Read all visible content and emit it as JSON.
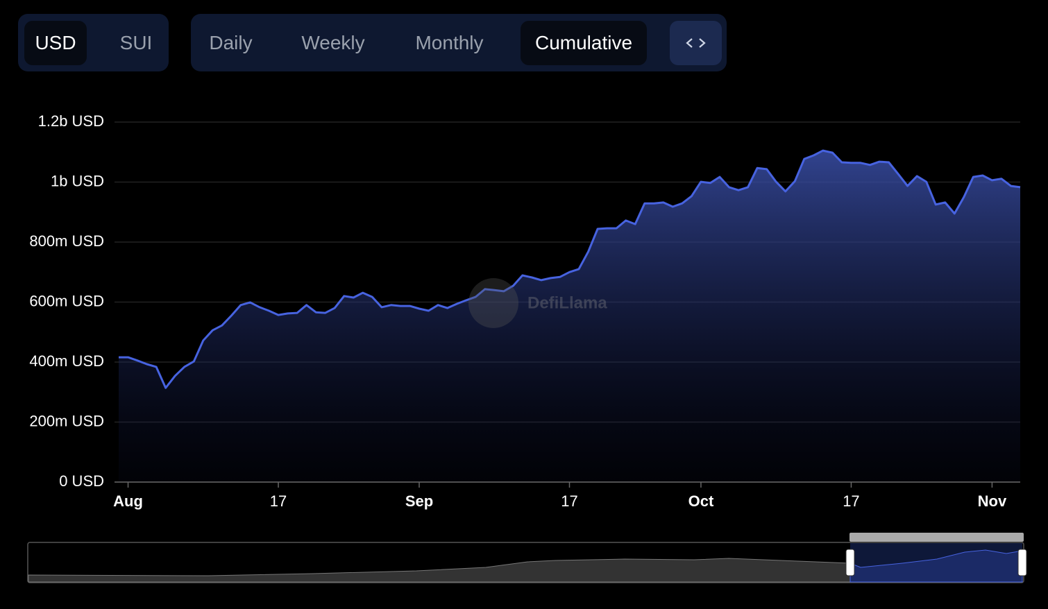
{
  "ui": {
    "currency_tabs": [
      "USD",
      "SUI"
    ],
    "period_tabs": [
      "Daily",
      "Weekly",
      "Monthly",
      "Cumulative"
    ],
    "watermark": "DefiLlama"
  },
  "chart_data": {
    "type": "area",
    "color": "#4763e0",
    "grid": true,
    "categories": [
      null,
      "Aug",
      null,
      null,
      null,
      null,
      null,
      null,
      null,
      null,
      null,
      null,
      null,
      null,
      null,
      null,
      null,
      "17",
      null,
      null,
      null,
      null,
      null,
      null,
      null,
      null,
      null,
      null,
      null,
      null,
      null,
      null,
      "Sep",
      null,
      null,
      null,
      null,
      null,
      null,
      null,
      null,
      null,
      null,
      null,
      null,
      null,
      null,
      null,
      "17",
      null,
      null,
      null,
      null,
      null,
      null,
      null,
      null,
      null,
      null,
      null,
      null,
      null,
      "Oct",
      null,
      null,
      null,
      null,
      null,
      null,
      null,
      null,
      null,
      null,
      null,
      null,
      null,
      null,
      null,
      "17",
      null,
      null,
      null,
      null,
      null,
      null,
      null,
      null,
      null,
      null,
      null,
      null,
      null,
      null,
      "Nov",
      null,
      null,
      null
    ],
    "values": [
      416000000,
      416000000,
      405000000,
      393000000,
      384000000,
      314000000,
      354000000,
      384000000,
      402000000,
      472000000,
      506000000,
      522000000,
      555000000,
      590000000,
      599000000,
      583000000,
      571000000,
      557000000,
      562000000,
      564000000,
      590000000,
      566000000,
      564000000,
      580000000,
      620000000,
      615000000,
      631000000,
      617000000,
      583000000,
      590000000,
      587000000,
      587000000,
      578000000,
      571000000,
      590000000,
      580000000,
      594000000,
      606000000,
      617000000,
      643000000,
      640000000,
      636000000,
      654000000,
      689000000,
      682000000,
      673000000,
      680000000,
      684000000,
      700000000,
      710000000,
      768000000,
      844000000,
      846000000,
      846000000,
      872000000,
      860000000,
      929000000,
      929000000,
      932000000,
      918000000,
      929000000,
      953000000,
      1001000000,
      997000000,
      1017000000,
      983000000,
      973000000,
      983000000,
      1047000000,
      1043000000,
      1001000000,
      969000000,
      1003000000,
      1077000000,
      1089000000,
      1105000000,
      1098000000,
      1066000000,
      1064000000,
      1064000000,
      1057000000,
      1068000000,
      1066000000,
      1027000000,
      987000000,
      1020000000,
      1001000000,
      925000000,
      932000000,
      895000000,
      950000000,
      1017000000,
      1022000000,
      1006000000,
      1011000000,
      987000000,
      983000000
    ],
    "ylim": [
      0,
      1200000000
    ],
    "yticks": [
      {
        "value": 0,
        "label": "0 USD"
      },
      {
        "value": 200000000,
        "label": "200m USD"
      },
      {
        "value": 400000000,
        "label": "400m USD"
      },
      {
        "value": 600000000,
        "label": "600m USD"
      },
      {
        "value": 800000000,
        "label": "800m USD"
      },
      {
        "value": 1000000000,
        "label": "1b USD"
      },
      {
        "value": 1200000000,
        "label": "1.2b USD"
      }
    ]
  }
}
